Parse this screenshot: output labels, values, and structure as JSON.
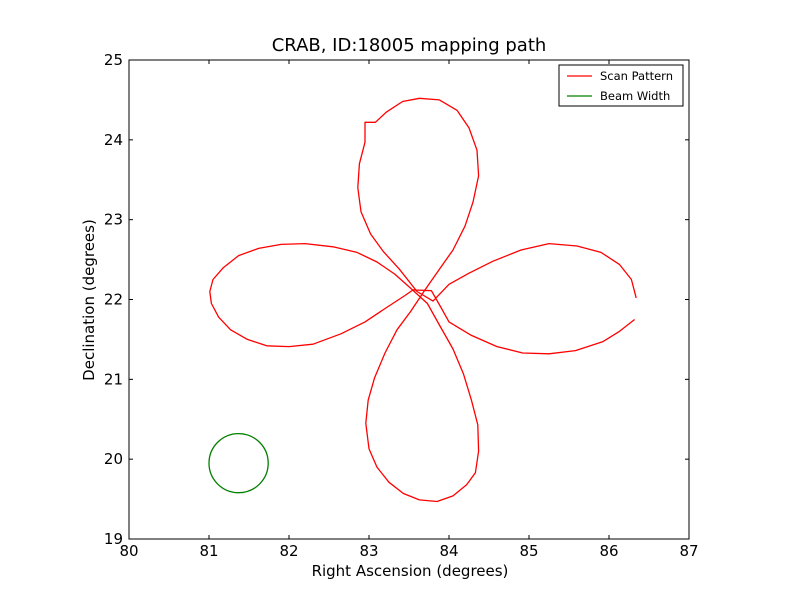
{
  "chart_data": {
    "type": "line",
    "title": "CRAB, ID:18005 mapping path",
    "xlabel": "Right Ascension (degrees)",
    "ylabel": "Declination (degrees)",
    "xlim": [
      80,
      87
    ],
    "ylim": [
      19,
      25
    ],
    "xticks": [
      "80",
      "81",
      "82",
      "83",
      "84",
      "85",
      "86",
      "87"
    ],
    "yticks": [
      "19",
      "20",
      "21",
      "22",
      "23",
      "24",
      "25"
    ],
    "grid": false,
    "legend_position": "top-right",
    "series": [
      {
        "name": "Scan Pattern",
        "color": "#ff0000",
        "points": [
          [
            86.32,
            21.75
          ],
          [
            86.13,
            21.6
          ],
          [
            85.92,
            21.47
          ],
          [
            85.58,
            21.36
          ],
          [
            85.25,
            21.32
          ],
          [
            84.92,
            21.33
          ],
          [
            84.6,
            21.41
          ],
          [
            84.28,
            21.55
          ],
          [
            84.0,
            21.72
          ],
          [
            83.9,
            21.9
          ],
          [
            83.78,
            22.11
          ],
          [
            83.55,
            22.12
          ],
          [
            83.45,
            22.05
          ],
          [
            83.22,
            21.9
          ],
          [
            82.95,
            21.72
          ],
          [
            82.65,
            21.57
          ],
          [
            82.3,
            21.44
          ],
          [
            82.0,
            21.41
          ],
          [
            81.72,
            21.42
          ],
          [
            81.48,
            21.5
          ],
          [
            81.27,
            21.62
          ],
          [
            81.12,
            21.78
          ],
          [
            81.03,
            21.95
          ],
          [
            81.01,
            22.1
          ],
          [
            81.05,
            22.25
          ],
          [
            81.18,
            22.4
          ],
          [
            81.37,
            22.55
          ],
          [
            81.62,
            22.64
          ],
          [
            81.9,
            22.69
          ],
          [
            82.2,
            22.7
          ],
          [
            82.55,
            22.66
          ],
          [
            82.85,
            22.59
          ],
          [
            83.1,
            22.47
          ],
          [
            83.32,
            22.32
          ],
          [
            83.5,
            22.16
          ],
          [
            83.73,
            21.95
          ],
          [
            83.88,
            21.68
          ],
          [
            84.05,
            21.38
          ],
          [
            84.18,
            21.07
          ],
          [
            84.28,
            20.74
          ],
          [
            84.36,
            20.43
          ],
          [
            84.37,
            20.1
          ],
          [
            84.33,
            19.83
          ],
          [
            84.22,
            19.68
          ],
          [
            84.05,
            19.54
          ],
          [
            83.85,
            19.47
          ],
          [
            83.63,
            19.49
          ],
          [
            83.43,
            19.57
          ],
          [
            83.25,
            19.71
          ],
          [
            83.1,
            19.9
          ],
          [
            83.0,
            20.13
          ],
          [
            82.96,
            20.45
          ],
          [
            82.99,
            20.74
          ],
          [
            83.07,
            21.02
          ],
          [
            83.2,
            21.33
          ],
          [
            83.35,
            21.62
          ],
          [
            83.52,
            21.85
          ],
          [
            83.7,
            22.12
          ],
          [
            83.88,
            22.38
          ],
          [
            84.05,
            22.62
          ],
          [
            84.2,
            22.92
          ],
          [
            84.3,
            23.22
          ],
          [
            84.37,
            23.55
          ],
          [
            84.35,
            23.87
          ],
          [
            84.25,
            24.15
          ],
          [
            84.1,
            24.37
          ],
          [
            83.88,
            24.5
          ],
          [
            83.63,
            24.52
          ],
          [
            83.42,
            24.48
          ],
          [
            83.22,
            24.35
          ],
          [
            83.08,
            24.22
          ],
          [
            82.95,
            24.22
          ],
          [
            82.95,
            23.97
          ],
          [
            82.88,
            23.7
          ],
          [
            82.86,
            23.4
          ],
          [
            82.9,
            23.1
          ],
          [
            83.02,
            22.82
          ],
          [
            83.18,
            22.6
          ],
          [
            83.38,
            22.38
          ],
          [
            83.6,
            22.1
          ],
          [
            83.8,
            21.98
          ],
          [
            84.0,
            22.19
          ],
          [
            84.25,
            22.33
          ],
          [
            84.55,
            22.48
          ],
          [
            84.9,
            22.62
          ],
          [
            85.25,
            22.7
          ],
          [
            85.6,
            22.67
          ],
          [
            85.9,
            22.59
          ],
          [
            86.13,
            22.44
          ],
          [
            86.28,
            22.25
          ],
          [
            86.34,
            22.02
          ]
        ]
      },
      {
        "name": "Beam Width",
        "color": "#008000",
        "circle": {
          "center": [
            81.37,
            19.95
          ],
          "radius_deg": 0.37
        }
      }
    ]
  }
}
